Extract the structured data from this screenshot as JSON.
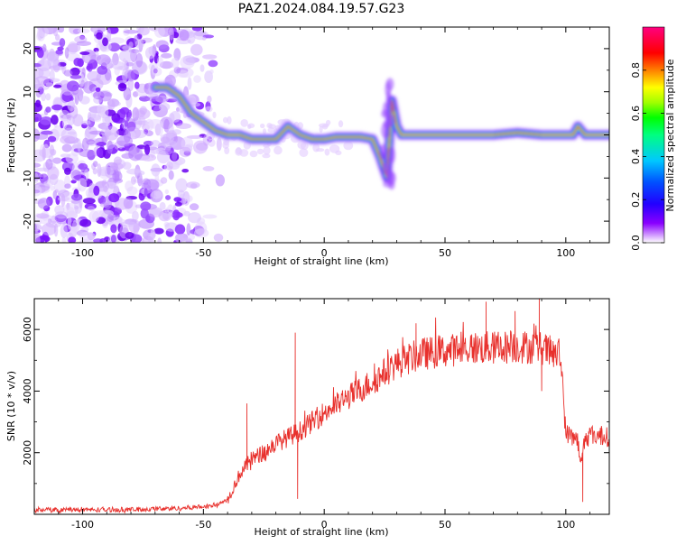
{
  "title": "PAZ1.2024.084.19.57.G23",
  "colors": {
    "snr_line": "#e8302c",
    "frame": "#000000",
    "colorbar": [
      "#ffffff",
      "#8a00ff",
      "#2200ff",
      "#0050ff",
      "#00c8ff",
      "#00ff80",
      "#00ff00",
      "#a0ff00",
      "#ffff00",
      "#ff8000",
      "#ff0000",
      "#ff0080"
    ]
  },
  "chart_data": [
    {
      "type": "heatmap",
      "xlabel": "Height of straight line (km)",
      "ylabel": "Frequency (Hz)",
      "xlim": [
        -120,
        118
      ],
      "ylim": [
        -25,
        25
      ],
      "xticks": [
        -100,
        -50,
        0,
        50,
        100
      ],
      "yticks": [
        -20,
        -10,
        0,
        10,
        20
      ],
      "colorbar": {
        "label": "Normalized spectral amplitude",
        "range": [
          0,
          1
        ],
        "ticks": [
          "0.0",
          "0.2",
          "0.4",
          "0.6",
          "0.8"
        ]
      },
      "noise_region_x": [
        -120,
        -45
      ],
      "ridge": {
        "x": [
          -70,
          -65,
          -60,
          -55,
          -50,
          -45,
          -40,
          -35,
          -30,
          -25,
          -20,
          -15,
          -10,
          -5,
          0,
          5,
          10,
          15,
          20,
          23,
          26,
          28,
          30,
          32,
          35,
          40,
          50,
          60,
          70,
          80,
          90,
          100,
          103,
          105,
          108,
          112,
          118
        ],
        "freq": [
          11,
          11,
          9,
          5,
          3,
          1,
          0,
          0,
          -1,
          -1,
          -1,
          2,
          0,
          -1,
          -1,
          -0.5,
          -0.5,
          -0.5,
          -1,
          -5,
          -10,
          8,
          2,
          0,
          0,
          0,
          0,
          0,
          0,
          0.5,
          0,
          0,
          0,
          2,
          0,
          0,
          0
        ]
      }
    },
    {
      "type": "line",
      "xlabel": "Height of straight line (km)",
      "ylabel": "SNR (10 * v/v)",
      "xlim": [
        -120,
        118
      ],
      "ylim": [
        0,
        7000
      ],
      "xticks": [
        -100,
        -50,
        0,
        50,
        100
      ],
      "yticks": [
        2000,
        4000,
        6000
      ],
      "envelope": {
        "x": [
          -120,
          -100,
          -80,
          -60,
          -50,
          -45,
          -40,
          -38,
          -35,
          -30,
          -25,
          -20,
          -10,
          0,
          10,
          20,
          30,
          40,
          50,
          60,
          70,
          80,
          90,
          98,
          100,
          102,
          105,
          106,
          108,
          110,
          118
        ],
        "y": [
          150,
          150,
          150,
          200,
          250,
          300,
          450,
          800,
          1300,
          1800,
          2000,
          2300,
          2700,
          3300,
          3800,
          4300,
          4900,
          5200,
          5300,
          5400,
          5400,
          5450,
          5400,
          5100,
          2600,
          2600,
          2400,
          1500,
          2500,
          2600,
          2500
        ]
      },
      "spikes": [
        {
          "x": -32,
          "y": 3600
        },
        {
          "x": -12,
          "y": 5900
        },
        {
          "x": -11,
          "y": 500
        },
        {
          "x": 38,
          "y": 6200
        },
        {
          "x": 67,
          "y": 6900
        },
        {
          "x": 79,
          "y": 6600
        },
        {
          "x": 89,
          "y": 7000
        },
        {
          "x": 90,
          "y": 4000
        },
        {
          "x": 107,
          "y": 400
        }
      ]
    }
  ]
}
